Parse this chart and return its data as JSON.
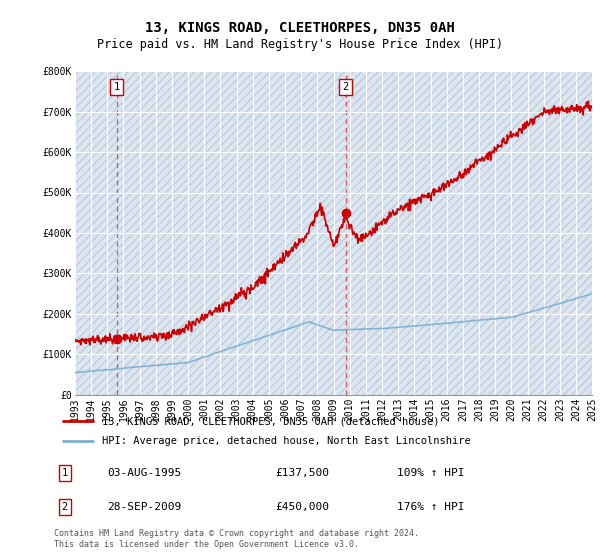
{
  "title": "13, KINGS ROAD, CLEETHORPES, DN35 0AH",
  "subtitle": "Price paid vs. HM Land Registry's House Price Index (HPI)",
  "ylim": [
    0,
    800000
  ],
  "yticks": [
    0,
    100000,
    200000,
    300000,
    400000,
    500000,
    600000,
    700000,
    800000
  ],
  "ytick_labels": [
    "£0",
    "£100K",
    "£200K",
    "£300K",
    "£400K",
    "£500K",
    "£600K",
    "£700K",
    "£800K"
  ],
  "xmin_year": 1993,
  "xmax_year": 2025,
  "xticks": [
    1993,
    1994,
    1995,
    1996,
    1997,
    1998,
    1999,
    2000,
    2001,
    2002,
    2003,
    2004,
    2005,
    2006,
    2007,
    2008,
    2009,
    2010,
    2011,
    2012,
    2013,
    2014,
    2015,
    2016,
    2017,
    2018,
    2019,
    2020,
    2021,
    2022,
    2023,
    2024,
    2025
  ],
  "purchase1_x": 1995.58,
  "purchase1_y": 137500,
  "purchase1_label": "1",
  "purchase2_x": 2009.75,
  "purchase2_y": 450000,
  "purchase2_label": "2",
  "legend_line1": "13, KINGS ROAD, CLEETHORPES, DN35 0AH (detached house)",
  "legend_line2": "HPI: Average price, detached house, North East Lincolnshire",
  "footer": "Contains HM Land Registry data © Crown copyright and database right 2024.\nThis data is licensed under the Open Government Licence v3.0.",
  "house_color": "#cc0000",
  "hpi_color": "#7bafd4",
  "background_color": "#dce6f1",
  "title_fontsize": 10,
  "subtitle_fontsize": 8.5,
  "axis_fontsize": 7,
  "legend_fontsize": 7.5,
  "annotation_fontsize": 8
}
